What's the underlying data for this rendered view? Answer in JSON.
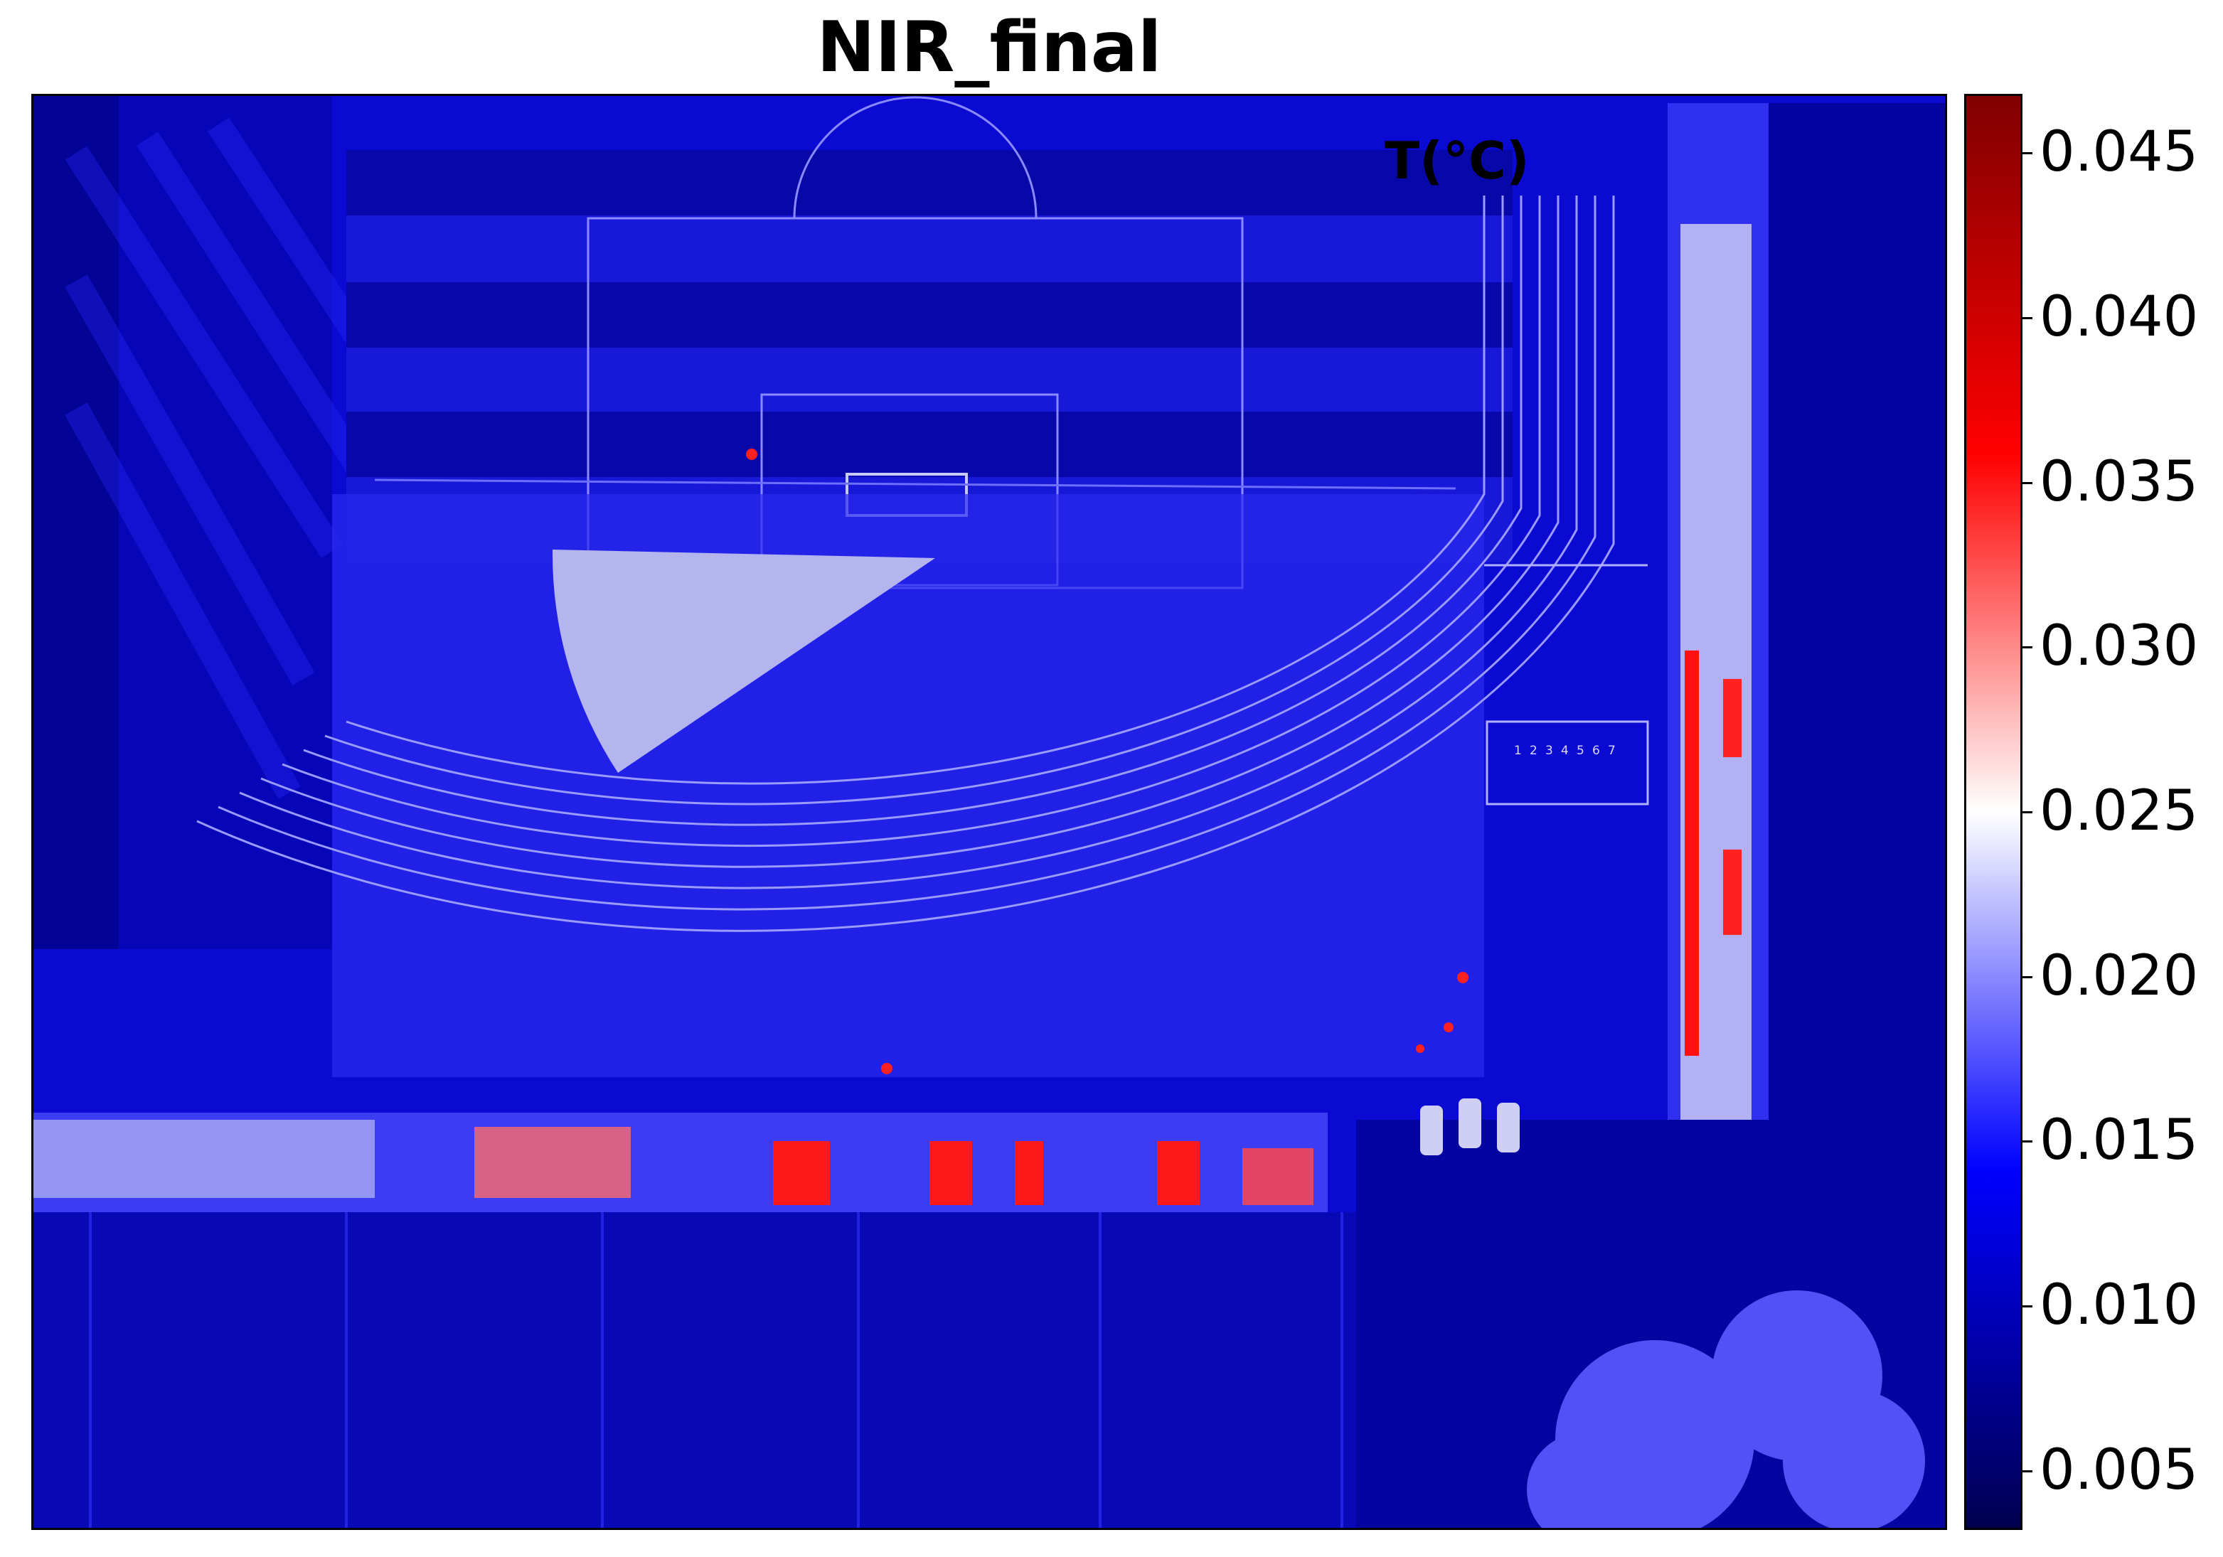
{
  "title": "NIR_final",
  "overlay_label": "T(°C)",
  "track_lane_numbers": [
    "1",
    "2",
    "3",
    "4",
    "5",
    "6",
    "7"
  ],
  "colorbar": {
    "colormap": "seismic",
    "vmin": 0.0032,
    "vmax": 0.0468,
    "ticks": [
      "0.045",
      "0.040",
      "0.035",
      "0.030",
      "0.025",
      "0.020",
      "0.015",
      "0.010",
      "0.005"
    ],
    "colors": [
      "#000050",
      "#0000ff",
      "#ffffff",
      "#ff0000",
      "#800000"
    ]
  }
}
